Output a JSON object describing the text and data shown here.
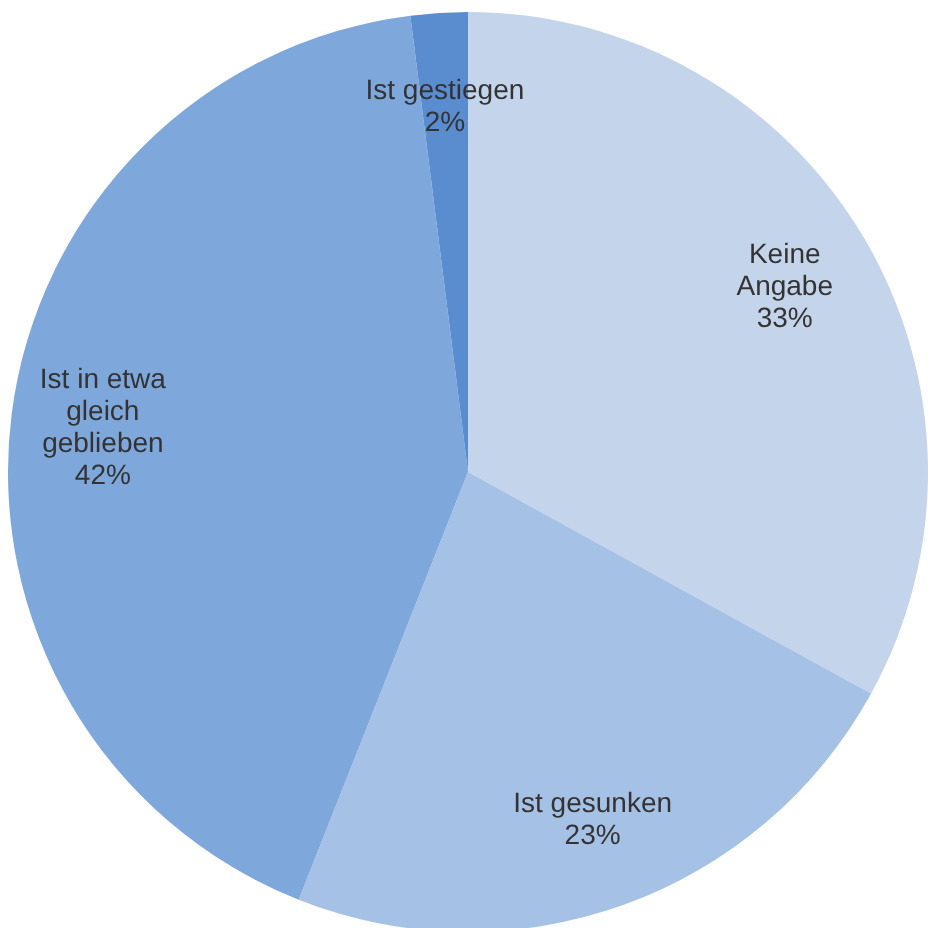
{
  "chart_data": {
    "type": "pie",
    "categories": [
      "Keine Angabe",
      "Ist gesunken",
      "Ist in etwa gleich geblieben",
      "Ist gestiegen"
    ],
    "values": [
      33,
      23,
      42,
      2
    ],
    "value_labels": [
      "33%",
      "23%",
      "42%",
      "2%"
    ],
    "colors": [
      "#c3d4eb",
      "#a6c1e6",
      "#7ea7dc",
      "#5a8dd0"
    ],
    "legend": false
  }
}
